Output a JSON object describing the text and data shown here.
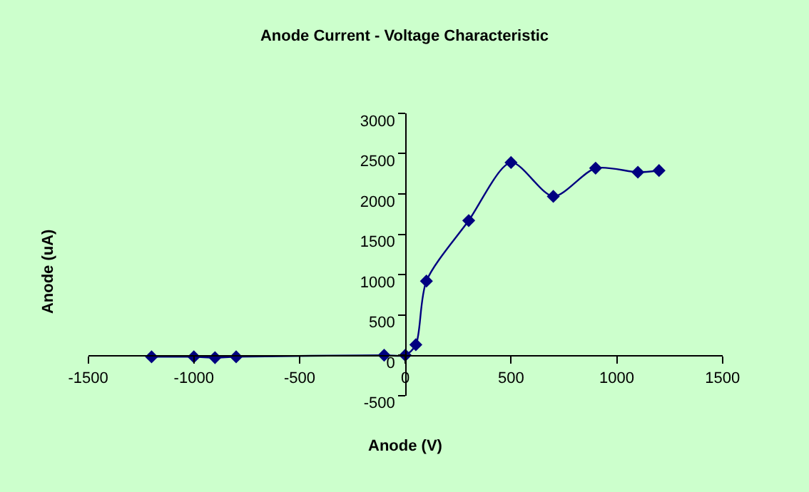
{
  "chart_data": {
    "type": "line",
    "title": "Anode Current - Voltage Characteristic",
    "xlabel": "Anode (V)",
    "ylabel": "Anode (uA)",
    "x": [
      -1200,
      -1000,
      -900,
      -800,
      -100,
      0,
      50,
      100,
      300,
      500,
      700,
      900,
      1100,
      1200
    ],
    "series": [
      {
        "color": "#000080",
        "values": [
          -20,
          -20,
          -30,
          -20,
          0,
          0,
          130,
          920,
          1670,
          2390,
          1970,
          2320,
          2270,
          2290
        ]
      }
    ],
    "xlim": [
      -1500,
      1500
    ],
    "xticks": [
      -1500,
      -1000,
      -500,
      0,
      500,
      1000,
      1500
    ],
    "ylim": [
      -500,
      3000
    ],
    "yticks": [
      -500,
      0,
      500,
      1000,
      1500,
      2000,
      2500,
      3000
    ],
    "grid": false,
    "marker": "diamond",
    "line_style": "solid"
  }
}
